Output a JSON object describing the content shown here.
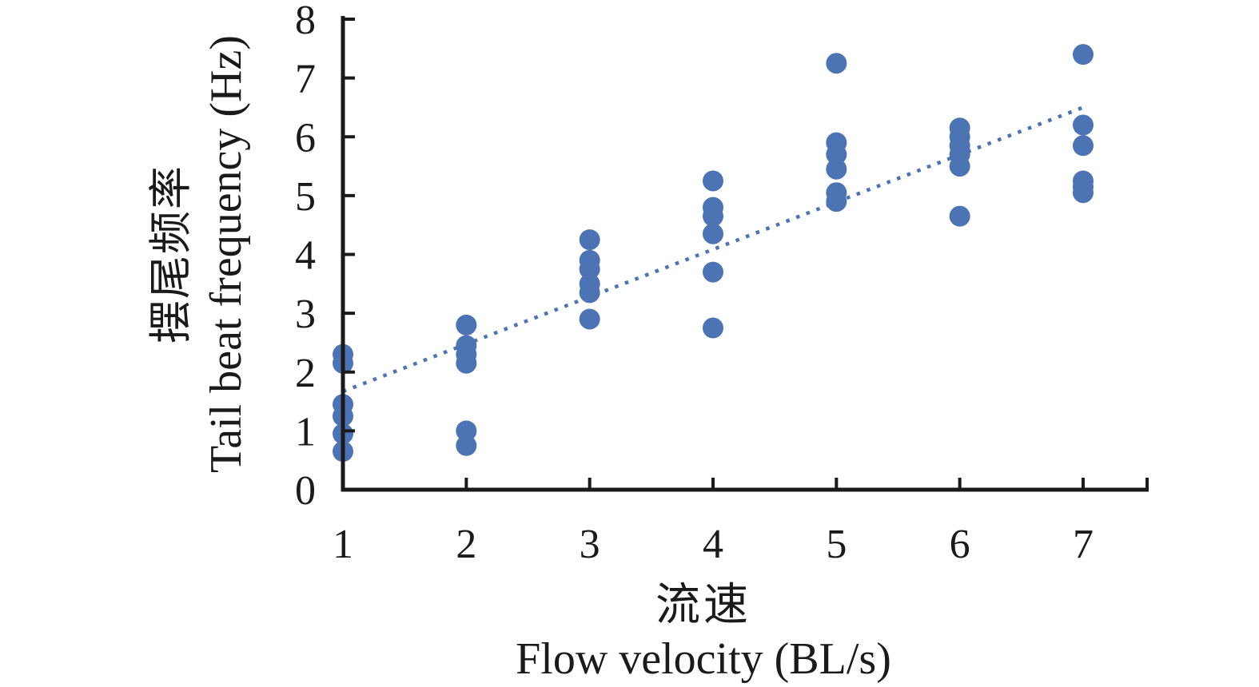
{
  "figure": {
    "y_axis_title_zh": "摆尾频率",
    "y_axis_title_en": "Tail beat frequency (Hz)",
    "x_axis_title_zh": "流速",
    "x_axis_title_en": "Flow velocity (BL/s)"
  },
  "chart_data": {
    "type": "scatter",
    "title": "",
    "xlabel": "流速 Flow velocity (BL/s)",
    "ylabel": "摆尾频率 Tail beat frequency (Hz)",
    "xlim": [
      1,
      7.5
    ],
    "ylim": [
      0,
      8
    ],
    "x_ticks": [
      "1",
      "2",
      "3",
      "4",
      "5",
      "6",
      "7"
    ],
    "y_ticks": [
      "0",
      "1",
      "2",
      "3",
      "4",
      "5",
      "6",
      "7",
      "8"
    ],
    "grid": false,
    "legend": false,
    "marker_color": "#4C73B3",
    "axis_color": "#1a1a1a",
    "points": [
      {
        "x": 1,
        "y": [
          2.3,
          2.15,
          1.45,
          1.25,
          0.95,
          0.65
        ]
      },
      {
        "x": 2,
        "y": [
          2.8,
          2.45,
          2.3,
          2.15,
          1.0,
          0.75
        ]
      },
      {
        "x": 3,
        "y": [
          4.25,
          3.9,
          3.75,
          3.5,
          3.35,
          2.9
        ]
      },
      {
        "x": 4,
        "y": [
          5.25,
          4.8,
          4.65,
          4.35,
          3.7,
          2.75
        ]
      },
      {
        "x": 5,
        "y": [
          7.25,
          5.9,
          5.7,
          5.45,
          5.05,
          4.9
        ]
      },
      {
        "x": 6,
        "y": [
          6.15,
          6.0,
          5.85,
          5.7,
          5.5,
          4.65
        ]
      },
      {
        "x": 7,
        "y": [
          7.4,
          6.2,
          5.85,
          5.25,
          5.15,
          5.05
        ]
      }
    ],
    "trendline": {
      "style": "dotted",
      "color": "#4C73B3",
      "x": [
        1,
        7
      ],
      "y": [
        1.67,
        6.5
      ]
    }
  }
}
